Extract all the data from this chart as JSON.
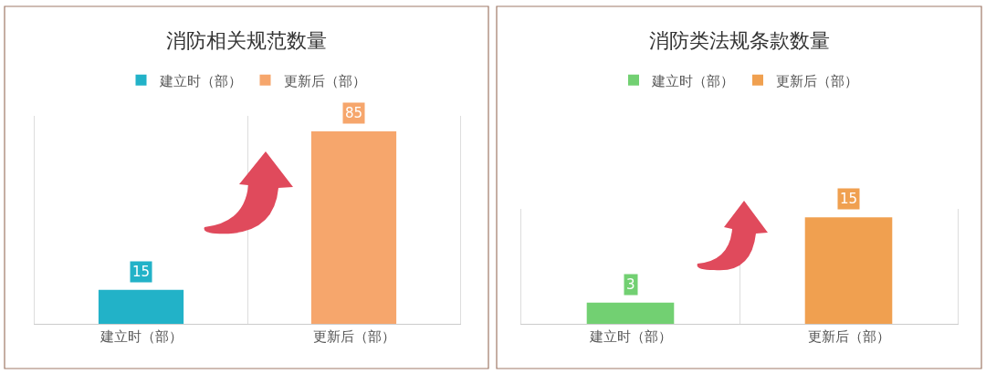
{
  "chart_data": [
    {
      "type": "bar",
      "title": "消防相关规范数量",
      "categories": [
        "建立时（部）",
        "更新后（部）"
      ],
      "series": [
        {
          "name": "建立时（部）",
          "color": "#22b2c8",
          "values": [
            15,
            null
          ]
        },
        {
          "name": "更新后（部）",
          "color": "#f6a66c",
          "values": [
            null,
            85
          ]
        }
      ],
      "data_labels": true,
      "legend": "top",
      "grid": "x",
      "tick_labels": "x"
    },
    {
      "type": "bar",
      "title": "消防类法规条款数量",
      "categories": [
        "建立时（部）",
        "更新后（部）"
      ],
      "series": [
        {
          "name": "建立时（部）",
          "color": "#72d072",
          "values": [
            3,
            null
          ]
        },
        {
          "name": "更新后（部）",
          "color": "#f0a050",
          "values": [
            null,
            15
          ]
        }
      ],
      "data_labels": true,
      "legend": "top",
      "grid": "x",
      "tick_labels": "x"
    }
  ]
}
